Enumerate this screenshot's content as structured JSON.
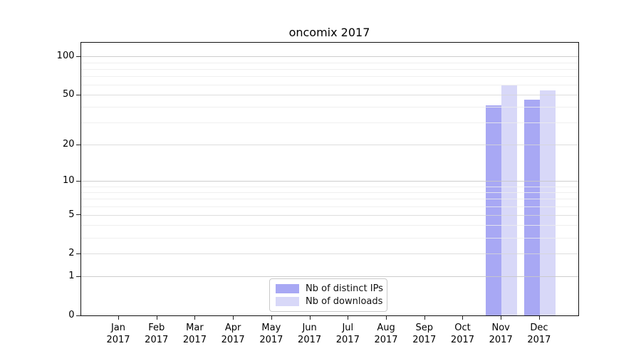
{
  "title": "oncomix 2017",
  "legend": {
    "items": [
      {
        "label": "Nb of distinct IPs"
      },
      {
        "label": "Nb of downloads"
      }
    ]
  },
  "colors": {
    "distinct_ips_bar": "#a8a8f4",
    "downloads_bar": "#d8d8f8",
    "grid_major": "rgba(200,200,200,0.9)",
    "grid_mid": "rgba(214,214,214,0.8)",
    "grid_minor": "rgba(236,236,236,0.85)",
    "axis_text": "#000000"
  },
  "chart_data": {
    "type": "bar",
    "title": "oncomix 2017",
    "xlabel": "",
    "ylabel": "",
    "categories": [
      "Jan",
      "Feb",
      "Mar",
      "Apr",
      "May",
      "Jun",
      "Jul",
      "Aug",
      "Sep",
      "Oct",
      "Nov",
      "Dec"
    ],
    "category_year": "2017",
    "series": [
      {
        "name": "Nb of distinct IPs",
        "color": "#a8a8f4",
        "values": [
          0,
          0,
          0,
          0,
          0,
          0,
          0,
          0,
          0,
          0,
          41,
          46
        ]
      },
      {
        "name": "Nb of downloads",
        "color": "#d8d8f8",
        "values": [
          0,
          0,
          0,
          0,
          0,
          0,
          0,
          0,
          0,
          0,
          59,
          54
        ]
      }
    ],
    "y_axis": {
      "scale": "log1p",
      "ticks": [
        0,
        1,
        2,
        5,
        10,
        20,
        50,
        100
      ],
      "major_gridline_values": [
        1,
        10,
        100
      ],
      "minor_gridline_values": [
        3,
        4,
        6,
        7,
        8,
        9,
        30,
        40,
        60,
        70,
        80,
        90
      ],
      "ylim": [
        0,
        128
      ]
    },
    "grid": true,
    "legend_position": "inside-bottom-center"
  }
}
